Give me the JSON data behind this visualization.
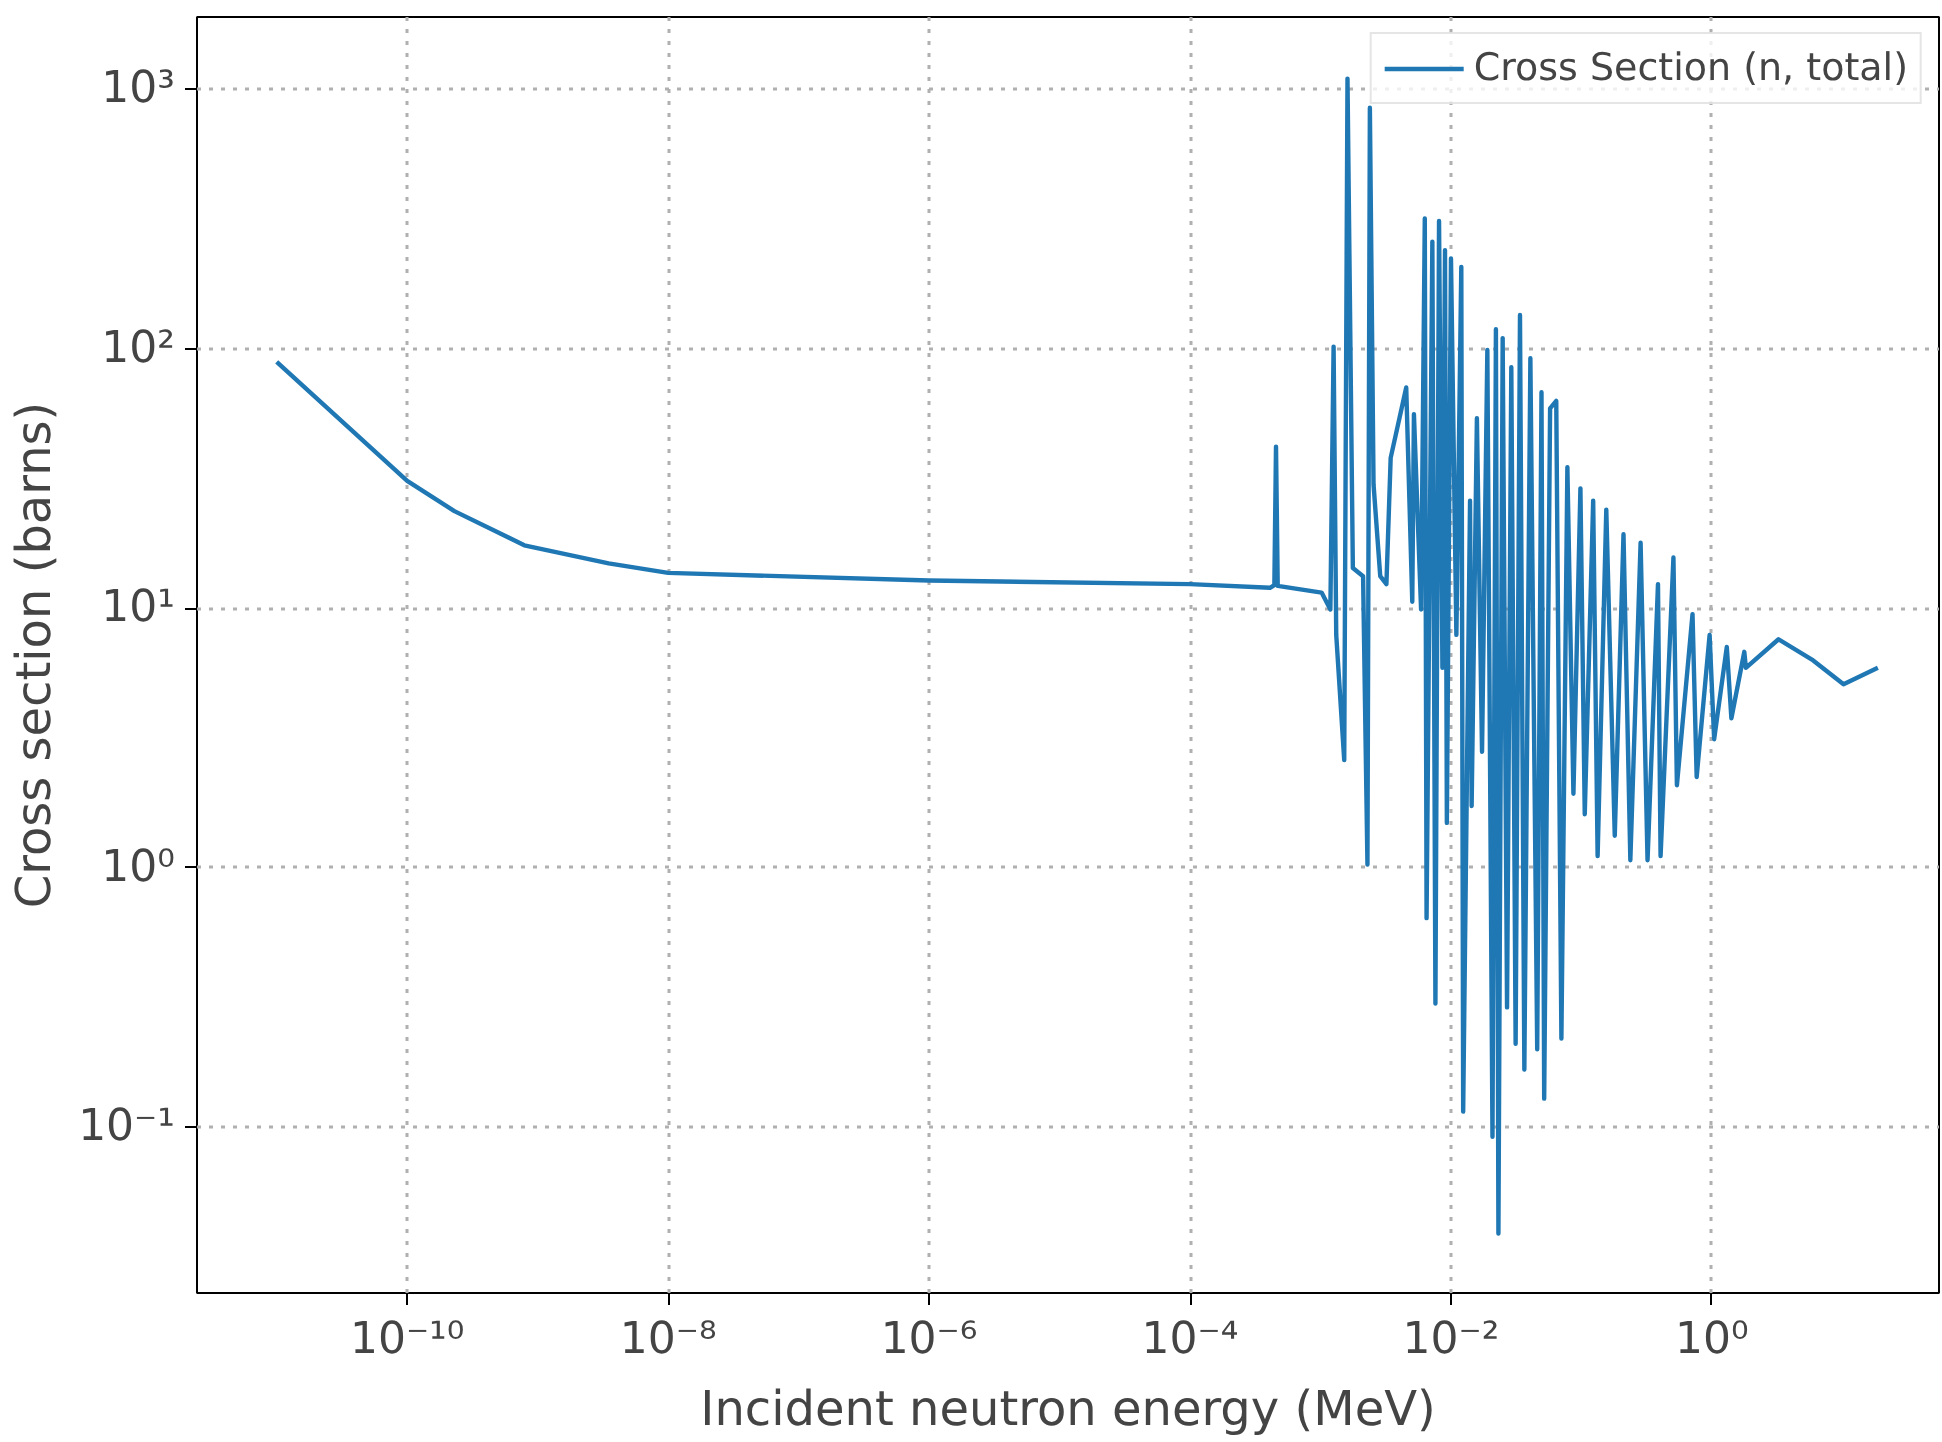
{
  "chart_data": {
    "type": "line",
    "xlabel": "Incident neutron energy (MeV)",
    "ylabel": "Cross section (barns)",
    "xlim": [
      2.45e-12,
      55
    ],
    "ylim": [
      0.023,
      1900
    ],
    "log": "xy",
    "grid": true,
    "legend": "top right",
    "marker": "none",
    "line_style": "solid",
    "xticks": [
      {
        "value": 1e-10,
        "label": "10⁻¹⁰"
      },
      {
        "value": 1e-08,
        "label": "10⁻⁸"
      },
      {
        "value": 1e-06,
        "label": "10⁻⁶"
      },
      {
        "value": 0.0001,
        "label": "10⁻⁴"
      },
      {
        "value": 0.01,
        "label": "10⁻²"
      },
      {
        "value": 1,
        "label": "10⁰"
      }
    ],
    "yticks": [
      {
        "value": 0.1,
        "label": "10⁻¹"
      },
      {
        "value": 1,
        "label": "10⁰"
      },
      {
        "value": 10,
        "label": "10¹"
      },
      {
        "value": 100,
        "label": "10²"
      },
      {
        "value": 1000,
        "label": "10³"
      }
    ],
    "series": [
      {
        "name": "Cross Section (n, total)",
        "color": "#1f77b4",
        "x": [
          1e-11,
          1e-10,
          2.3e-10,
          7.9e-10,
          3.5e-09,
          1e-08,
          1e-06,
          0.0001,
          0.00041,
          0.000443,
          0.000456,
          0.00047,
          0.00102,
          0.00119,
          0.00126,
          0.00132,
          0.00152,
          0.00161,
          0.00177,
          0.00212,
          0.00229,
          0.00239,
          0.00255,
          0.00287,
          0.0032,
          0.00345,
          0.00454,
          0.00505,
          0.0052,
          0.0059,
          0.0063,
          0.0065,
          0.0072,
          0.0076,
          0.0081,
          0.0086,
          0.009,
          0.0093,
          0.01,
          0.011,
          0.012,
          0.0124,
          0.014,
          0.0144,
          0.0158,
          0.0173,
          0.019,
          0.0208,
          0.0221,
          0.0231,
          0.0249,
          0.0269,
          0.029,
          0.0313,
          0.0338,
          0.0365,
          0.0406,
          0.0458,
          0.0494,
          0.0518,
          0.0575,
          0.0641,
          0.0702,
          0.078,
          0.0868,
          0.0982,
          0.106,
          0.123,
          0.133,
          0.155,
          0.18,
          0.21,
          0.237,
          0.284,
          0.321,
          0.386,
          0.404,
          0.507,
          0.539,
          0.71,
          0.764,
          0.96,
          1.04,
          1.3,
          1.41,
          1.77,
          1.82,
          3.24,
          5.97,
          10.2,
          18.7
        ],
        "values": [
          89,
          31,
          23.7,
          17.5,
          14.9,
          13.7,
          12.8,
          12.4,
          12.0,
          12.3,
          42,
          12.2,
          11.5,
          9.9,
          102,
          7.9,
          2.6,
          1100,
          14.3,
          13.3,
          1.03,
          850,
          30,
          13.3,
          12.4,
          38,
          71,
          10.6,
          56,
          9.9,
          318,
          0.64,
          259,
          0.3,
          311,
          5.9,
          240,
          1.49,
          223,
          7.9,
          207,
          0.115,
          26,
          1.73,
          54,
          2.8,
          99,
          0.092,
          119,
          0.039,
          110,
          0.29,
          85,
          0.21,
          135,
          0.167,
          92,
          0.2,
          68,
          0.129,
          59,
          63,
          0.22,
          35,
          1.93,
          29,
          1.61,
          26,
          1.11,
          24,
          1.33,
          19.3,
          1.07,
          17.9,
          1.07,
          12.4,
          1.11,
          15.7,
          2.08,
          9.5,
          2.24,
          7.9,
          3.13,
          7.1,
          3.77,
          6.8,
          5.9,
          7.6,
          6.3,
          5.1,
          5.9
        ]
      }
    ]
  }
}
